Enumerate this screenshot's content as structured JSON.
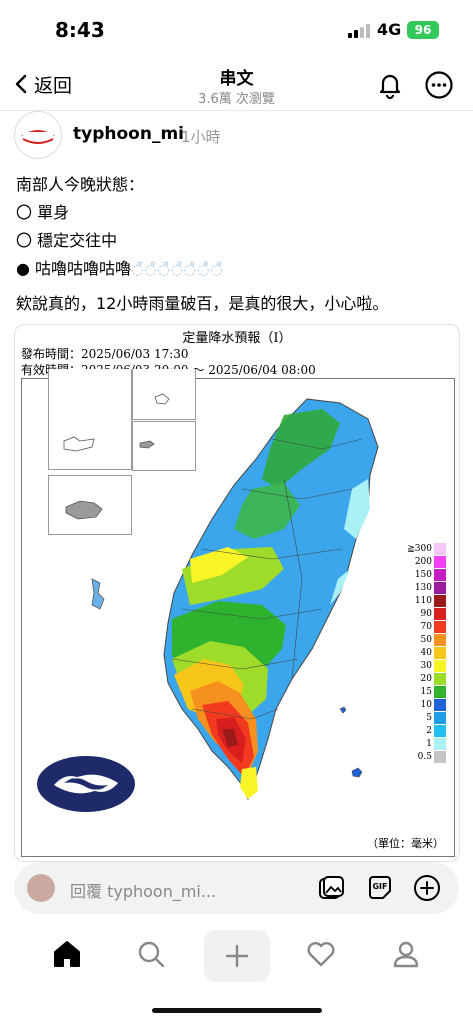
{
  "status": {
    "time": "8:43",
    "network": "4G",
    "battery": "96"
  },
  "header": {
    "back_label": "返回",
    "title": "串文",
    "views": "3.6萬 次瀏覽"
  },
  "post": {
    "username": "typhoon_mi",
    "time": "1小時",
    "lines": [
      "南部人今晚狀態：",
      "〇 單身",
      "〇 穩定交往中",
      "● 咕嚕咕嚕咕嚕",
      "欸說真的，12小時雨量破百，是真的很大，小心啦。"
    ],
    "bubbles": "◌̊◌̊◌̊◌̊◌̊◌̊◌̊"
  },
  "map": {
    "title": "定量降水預報（Ⅰ）",
    "issue_time": "發布時間：2025/06/03 17:30",
    "valid_time": "有效時間：2025/06/03 20:00 ～ 2025/06/04 08:00",
    "unit": "（單位：毫米）",
    "legend": [
      {
        "label": "≧300",
        "color": "#f7c7f3"
      },
      {
        "label": "200",
        "color": "#f23ef2"
      },
      {
        "label": "150",
        "color": "#c21fc2"
      },
      {
        "label": "130",
        "color": "#9c1d9c"
      },
      {
        "label": "110",
        "color": "#9a1a1a"
      },
      {
        "label": "90",
        "color": "#d81e1e"
      },
      {
        "label": "70",
        "color": "#f23a1e"
      },
      {
        "label": "50",
        "color": "#f6901f"
      },
      {
        "label": "40",
        "color": "#f8c51b"
      },
      {
        "label": "30",
        "color": "#f8f426"
      },
      {
        "label": "20",
        "color": "#9fdc2a"
      },
      {
        "label": "15",
        "color": "#2fb32f"
      },
      {
        "label": "10",
        "color": "#1f63d7"
      },
      {
        "label": "5",
        "color": "#1e9ee7"
      },
      {
        "label": "2",
        "color": "#21bff2"
      },
      {
        "label": "1",
        "color": "#a9f0f7"
      },
      {
        "label": "0.5",
        "color": "#c4c4c4"
      }
    ]
  },
  "reply": {
    "placeholder": "回覆 typhoon_mi..."
  },
  "tabs": [
    "home-icon",
    "search-icon",
    "create-icon",
    "heart-icon",
    "profile-icon"
  ]
}
